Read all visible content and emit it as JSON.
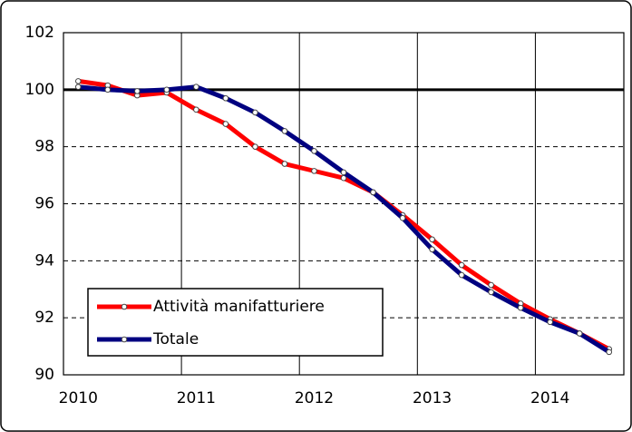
{
  "chart_data": {
    "type": "line",
    "x": [
      2010,
      2010.25,
      2010.5,
      2010.75,
      2011,
      2011.25,
      2011.5,
      2011.75,
      2012,
      2012.25,
      2012.5,
      2012.75,
      2013,
      2013.25,
      2013.5,
      2013.75,
      2014,
      2014.25,
      2014.5
    ],
    "series": [
      {
        "name": "Attività manifatturiere",
        "color": "#ff0000",
        "values": [
          100.3,
          100.15,
          99.8,
          99.9,
          99.3,
          98.8,
          98.0,
          97.4,
          97.15,
          96.9,
          96.4,
          95.6,
          94.75,
          93.85,
          93.15,
          92.5,
          91.95,
          91.45,
          90.9
        ]
      },
      {
        "name": "Totale",
        "color": "#000080",
        "values": [
          100.1,
          100.0,
          99.95,
          100.0,
          100.1,
          99.7,
          99.2,
          98.55,
          97.85,
          97.1,
          96.4,
          95.5,
          94.4,
          93.5,
          92.9,
          92.35,
          91.85,
          91.45,
          90.8
        ]
      }
    ],
    "xlim": [
      2009.875,
      2014.625
    ],
    "xticks": [
      2010,
      2011,
      2012,
      2013,
      2014
    ],
    "ylim": [
      90,
      102
    ],
    "yticks": [
      90,
      92,
      94,
      96,
      98,
      100,
      102
    ],
    "reference_line": 100,
    "grid": true,
    "legend": "lower left"
  }
}
